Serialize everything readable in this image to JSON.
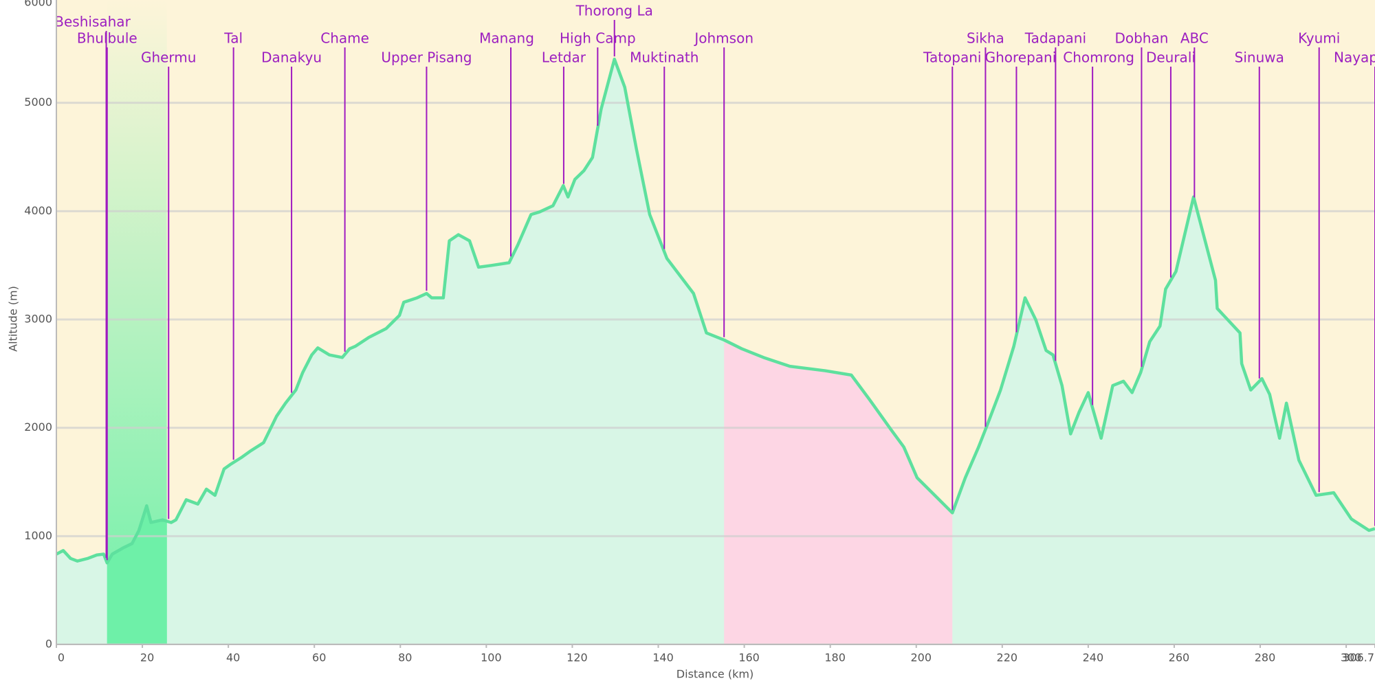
{
  "chart_data": {
    "type": "area",
    "xlabel": "Distance (km)",
    "ylabel": "Altitude (m)",
    "x": [
      0,
      1.6,
      3.3,
      4.9,
      7.3,
      9.4,
      11,
      11.8,
      13,
      15.5,
      17.6,
      19.2,
      21,
      22,
      24.7,
      26.7,
      27.8,
      30.2,
      32.9,
      34.9,
      36.9,
      39,
      40.4,
      43,
      45,
      48.2,
      51.2,
      53.3,
      55.7,
      57.3,
      59.4,
      60.8,
      63.5,
      66.5,
      68.2,
      69.6,
      72.7,
      76.7,
      79.8,
      80.8,
      83.9,
      86.1,
      87.3,
      90,
      91.4,
      93.5,
      96.1,
      98.2,
      101.2,
      105.3,
      107.3,
      110.4,
      112.4,
      115.5,
      117.9,
      119,
      120.6,
      122.7,
      124.7,
      126.7,
      129.8,
      132.2,
      134.9,
      138,
      142,
      145.1,
      148.2,
      151.2,
      155.3,
      159.4,
      164.5,
      170.6,
      178.8,
      184.9,
      189,
      194.1,
      197.1,
      200.2,
      204.3,
      208.4,
      211.4,
      214.5,
      216.5,
      219.6,
      222.7,
      225.3,
      227.8,
      230.2,
      231.8,
      233.9,
      235.9,
      237.9,
      240,
      243,
      245.7,
      248.2,
      250.2,
      252.2,
      254.3,
      256.7,
      258,
      260.4,
      264.5,
      269.6,
      270,
      275.3,
      275.7,
      277.8,
      280.4,
      282.2,
      284.5,
      286.1,
      289,
      293,
      297.1,
      301.2,
      305.3,
      306.7
    ],
    "values": [
      834,
      867,
      794,
      770,
      794,
      826,
      834,
      753,
      834,
      891,
      931,
      1053,
      1280,
      1126,
      1150,
      1126,
      1150,
      1336,
      1296,
      1434,
      1377,
      1620,
      1660,
      1725,
      1782,
      1863,
      2106,
      2228,
      2349,
      2511,
      2673,
      2738,
      2673,
      2649,
      2730,
      2754,
      2835,
      2916,
      3038,
      3159,
      3200,
      3240,
      3200,
      3200,
      3726,
      3783,
      3726,
      3483,
      3499,
      3524,
      3686,
      3969,
      3993,
      4050,
      4236,
      4131,
      4293,
      4374,
      4496,
      4941,
      5403,
      5144,
      4577,
      3969,
      3564,
      3402,
      3240,
      2876,
      2811,
      2730,
      2649,
      2568,
      2527,
      2487,
      2268,
      1985,
      1823,
      1539,
      1377,
      1215,
      1539,
      1823,
      2025,
      2349,
      2754,
      3200,
      2997,
      2714,
      2673,
      2390,
      1944,
      2147,
      2325,
      1904,
      2390,
      2430,
      2325,
      2511,
      2795,
      2940,
      3281,
      3443,
      4131,
      3362,
      3102,
      2876,
      2592,
      2349,
      2454,
      2309,
      1904,
      2228,
      1701,
      1377,
      1401,
      1158,
      1053,
      1069
    ],
    "color": "#5ee09e",
    "fill": "#d8f6e6",
    "background": "#fdf4d9",
    "regions": [
      {
        "x": [
          11.8,
          25.7
        ],
        "color": "#6ef0a8"
      },
      {
        "x": [
          155.3,
          208.4
        ],
        "color": "#fdd6e4"
      }
    ],
    "annotations": [
      {
        "text": "Beshisahar",
        "x": 11.6
      },
      {
        "text": "Bhulbule",
        "x": 11.8
      },
      {
        "text": "Ghermu",
        "x": 26.1
      },
      {
        "text": "Tal",
        "x": 41.2
      },
      {
        "text": "Danakyu",
        "x": 54.7
      },
      {
        "text": "Chame",
        "x": 67.1
      },
      {
        "text": "Upper Pisang",
        "x": 86.1
      },
      {
        "text": "Manang",
        "x": 105.7
      },
      {
        "text": "Letdar",
        "x": 118
      },
      {
        "text": "High Camp",
        "x": 125.9
      },
      {
        "text": "Thorong La",
        "x": 129.8
      },
      {
        "text": "Muktinath",
        "x": 141.4
      },
      {
        "text": "Johmson",
        "x": 155.3
      },
      {
        "text": "Tatopani",
        "x": 208.4
      },
      {
        "text": "Sikha",
        "x": 216.1
      },
      {
        "text": "Ghorepani",
        "x": 223.3
      },
      {
        "text": "Tadapani",
        "x": 232.4
      },
      {
        "text": "Chomrong",
        "x": 241
      },
      {
        "text": "Dobhan",
        "x": 252.4
      },
      {
        "text": "Deurali",
        "x": 259.2
      },
      {
        "text": "ABC",
        "x": 264.7
      },
      {
        "text": "Sinuwa",
        "x": 279.8
      },
      {
        "text": "Kyumi",
        "x": 293.7
      },
      {
        "text": "Nayapul",
        "x": 306.7
      }
    ],
    "xlim": [
      0,
      306.7
    ],
    "xticks": [
      0,
      20,
      40,
      60,
      80,
      100,
      120,
      140,
      160,
      180,
      200,
      220,
      240,
      260,
      280,
      300,
      306.7
    ],
    "ylim": [
      0,
      6000
    ],
    "yticks": [
      0,
      1000,
      2000,
      3000,
      4000,
      5000,
      6000
    ],
    "grid": true
  }
}
